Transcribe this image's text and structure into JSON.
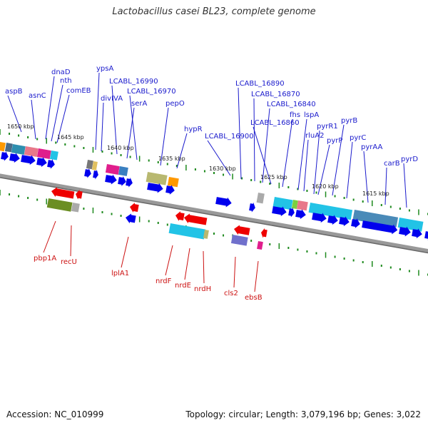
{
  "title": "Lactobacillus casei BL23, complete genome",
  "accession": "Accession: NC_010999",
  "summary": "Topology: circular; Length: 3,079,196 bp; Genes: 3,022",
  "colors": {
    "forward_label": "#1a1acc",
    "reverse_label": "#cc1111",
    "forward_arrow": "#0000ee",
    "reverse_arrow": "#ee0000",
    "backbone": "#888888",
    "tick": "#1e8a1e"
  },
  "scale_labels": [
    "1650 kbp",
    "1645 kbp",
    "1640 kbp",
    "1635 kbp",
    "1630 kbp",
    "1625 kbp",
    "1620 kbp",
    "1615 kbp"
  ],
  "forward_genes": [
    "aspB",
    "asnC",
    "dnaD",
    "nth",
    "comEB",
    "ypsA",
    "divIVA",
    "LCABL_16990",
    "serA",
    "LCABL_16970",
    "pepO",
    "hypR",
    "LCABL_16900",
    "LCABL_16890",
    "LCABL_16870",
    "LCABL_16840",
    "LCABL_16860",
    "fhs",
    "lspA",
    "rluA2",
    "pyrR1",
    "pyrP",
    "pyrB",
    "pyrC",
    "pyrAA",
    "carB",
    "pyrD"
  ],
  "reverse_genes": [
    "pbp1A",
    "recU",
    "lplA1",
    "nrdF",
    "nrdE",
    "nrdH",
    "cls2",
    "ebsB"
  ]
}
